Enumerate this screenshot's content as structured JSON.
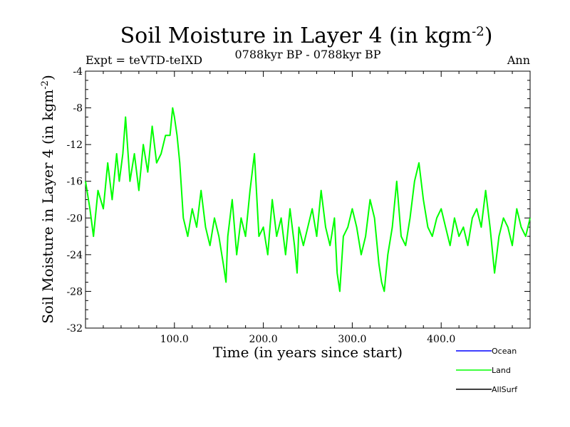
{
  "chart_data": {
    "type": "line",
    "title": {
      "text": "Soil Moisture in Layer 4 (in kgm",
      "superscript": "-2",
      "close": ")"
    },
    "subtitle_left": "Expt = teVTD-teIXD",
    "subtitle_center": "0788kyr BP - 0788kyr BP",
    "subtitle_right": "Ann",
    "xlabel": "Time (in years since start)",
    "ylabel": {
      "text": "Soil Moisture in Layer 4 (in kgm",
      "superscript": "-2",
      "close": ")"
    },
    "xlim": [
      0,
      500
    ],
    "ylim": [
      -32,
      -4
    ],
    "x_ticks": [
      100,
      200,
      300,
      400
    ],
    "x_tick_labels": [
      "100.0",
      "200.0",
      "300.0",
      "400.0"
    ],
    "y_ticks": [
      -32,
      -28,
      -24,
      -20,
      -16,
      -12,
      -8,
      -4
    ],
    "y_tick_labels": [
      "-32",
      "-28",
      "-24",
      "-20",
      "-16",
      "-12",
      "-8",
      "-4"
    ],
    "grid": false,
    "legend_position": "bottom-right",
    "series": [
      {
        "name": "Ocean",
        "color": "#0000ff",
        "values": []
      },
      {
        "name": "Land",
        "color": "#00ff00",
        "x": [
          0,
          5,
          9,
          14,
          20,
          25,
          30,
          35,
          38,
          42,
          45,
          50,
          55,
          60,
          65,
          70,
          75,
          80,
          85,
          90,
          95,
          98,
          100,
          103,
          106,
          110,
          115,
          120,
          125,
          130,
          135,
          140,
          145,
          150,
          155,
          158,
          160,
          165,
          170,
          175,
          180,
          185,
          190,
          195,
          200,
          205,
          210,
          215,
          220,
          225,
          230,
          235,
          238,
          240,
          245,
          250,
          255,
          260,
          265,
          270,
          275,
          280,
          283,
          286,
          290,
          295,
          300,
          305,
          310,
          315,
          320,
          325,
          330,
          333,
          336,
          340,
          345,
          350,
          355,
          360,
          365,
          370,
          375,
          380,
          385,
          390,
          395,
          400,
          405,
          410,
          415,
          420,
          425,
          430,
          435,
          440,
          445,
          450,
          455,
          460,
          465,
          470,
          475,
          480,
          485,
          490,
          495,
          500
        ],
        "values": [
          -16,
          -19,
          -22,
          -17,
          -19,
          -14,
          -18,
          -13,
          -16,
          -13,
          -9,
          -16,
          -13,
          -17,
          -12,
          -15,
          -10,
          -14,
          -13,
          -11,
          -11,
          -8,
          -9,
          -11,
          -14,
          -20,
          -22,
          -19,
          -21,
          -17,
          -21,
          -23,
          -20,
          -22,
          -25,
          -27,
          -22,
          -18,
          -24,
          -20,
          -22,
          -17,
          -13,
          -22,
          -21,
          -24,
          -18,
          -22,
          -20,
          -24,
          -19,
          -23,
          -26,
          -21,
          -23,
          -21,
          -19,
          -22,
          -17,
          -21,
          -23,
          -20,
          -26,
          -28,
          -22,
          -21,
          -19,
          -21,
          -24,
          -22,
          -18,
          -20,
          -25,
          -27,
          -28,
          -24,
          -21,
          -16,
          -22,
          -23,
          -20,
          -16,
          -14,
          -18,
          -21,
          -22,
          -20,
          -19,
          -21,
          -23,
          -20,
          -22,
          -21,
          -23,
          -20,
          -19,
          -21,
          -17,
          -21,
          -26,
          -22,
          -20,
          -21,
          -23,
          -19,
          -21,
          -22,
          -20
        ]
      },
      {
        "name": "AllSurf",
        "color": "#000000",
        "values": []
      }
    ]
  }
}
